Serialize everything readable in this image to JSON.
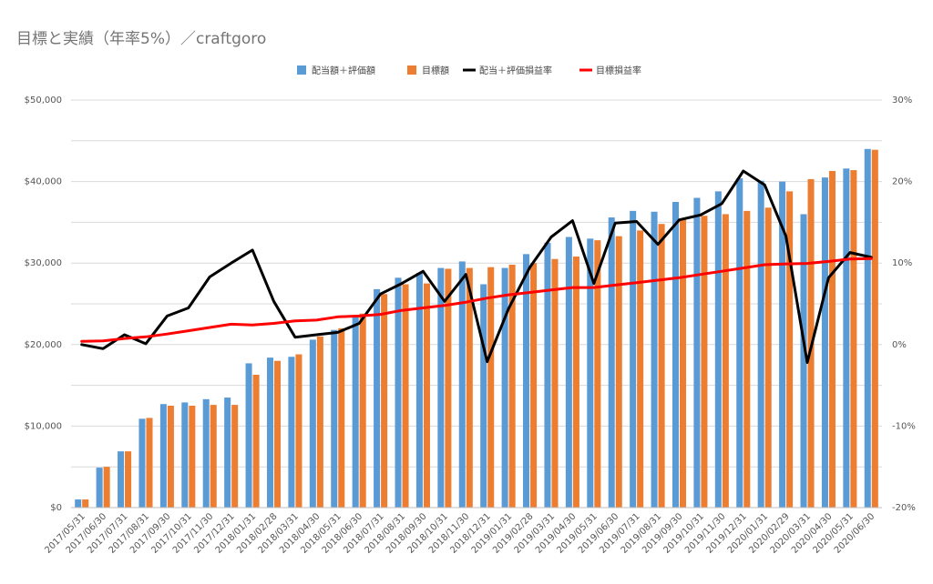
{
  "title": "目標と実績（年率5%）／craftgoro",
  "colors": {
    "actual_bar": "#5b9bd5",
    "target_bar": "#ed7d31",
    "actual_rate_line": "#000000",
    "target_rate_line": "#ff0000",
    "grid": "#d9d9d9",
    "axis": "#bfbfbf"
  },
  "chart_data": {
    "type": "bar",
    "title": "目標と実績（年率5%）／craftgoro",
    "categories": [
      "2017/05/31",
      "2017/06/30",
      "2017/07/31",
      "2017/08/31",
      "2017/09/30",
      "2017/10/31",
      "2017/11/30",
      "2017/12/31",
      "2018/01/31",
      "2018/02/28",
      "2018/03/31",
      "2018/04/30",
      "2018/05/31",
      "2018/06/30",
      "2018/07/31",
      "2018/08/31",
      "2018/09/30",
      "2018/10/31",
      "2018/11/30",
      "2018/12/31",
      "2019/01/31",
      "2019/02/28",
      "2019/03/31",
      "2019/04/30",
      "2019/05/31",
      "2019/06/30",
      "2019/07/31",
      "2019/08/31",
      "2019/09/30",
      "2019/10/31",
      "2019/11/30",
      "2019/12/31",
      "2020/01/31",
      "2020/02/29",
      "2020/03/31",
      "2020/04/30",
      "2020/05/31",
      "2020/06/30"
    ],
    "series": [
      {
        "name": "配当額＋評価額",
        "type": "bar",
        "axis": "left",
        "values": [
          1000,
          4900,
          6900,
          10900,
          12700,
          12900,
          13300,
          13500,
          17700,
          18400,
          18500,
          20600,
          21800,
          23500,
          26800,
          28200,
          28800,
          29400,
          30200,
          27400,
          29400,
          31100,
          32500,
          33200,
          33000,
          35600,
          36400,
          36300,
          37500,
          38000,
          38800,
          40400,
          40100,
          40000,
          36000,
          40500,
          41600,
          44000
        ]
      },
      {
        "name": "目標額",
        "type": "bar",
        "axis": "left",
        "values": [
          1000,
          5000,
          6900,
          11000,
          12500,
          12500,
          12600,
          12600,
          16300,
          18000,
          18800,
          21000,
          22000,
          23800,
          26200,
          27400,
          27500,
          29300,
          29400,
          29500,
          29800,
          30000,
          30500,
          30800,
          32800,
          33300,
          34000,
          34800,
          35400,
          35800,
          36000,
          36400,
          36800,
          38800,
          40300,
          41300,
          41400,
          43900
        ]
      },
      {
        "name": "配当＋評価損益率",
        "type": "line",
        "axis": "right",
        "values": [
          0.0,
          -0.5,
          1.2,
          0.1,
          3.5,
          4.5,
          8.3,
          10.0,
          11.6,
          5.3,
          0.9,
          1.2,
          1.5,
          2.6,
          6.2,
          7.5,
          9.0,
          5.3,
          8.6,
          -2.1,
          4.4,
          9.5,
          13.2,
          15.2,
          7.5,
          14.9,
          15.1,
          12.3,
          15.3,
          15.9,
          17.3,
          21.3,
          19.6,
          13.3,
          -2.2,
          8.2,
          11.3,
          10.7
        ]
      },
      {
        "name": "目標損益率",
        "type": "line",
        "axis": "right",
        "values": [
          0.4,
          0.45,
          0.75,
          0.95,
          1.3,
          1.7,
          2.1,
          2.5,
          2.4,
          2.6,
          2.9,
          3.0,
          3.4,
          3.5,
          3.7,
          4.2,
          4.5,
          4.8,
          5.2,
          5.7,
          6.1,
          6.4,
          6.7,
          7.0,
          7.0,
          7.3,
          7.6,
          7.9,
          8.2,
          8.6,
          9.0,
          9.4,
          9.8,
          9.9,
          9.95,
          10.2,
          10.5,
          10.55
        ]
      }
    ],
    "left_axis": {
      "ylim": [
        0,
        50000
      ],
      "ticks": [
        "$0",
        "$10,000",
        "$20,000",
        "$30,000",
        "$40,000",
        "$50,000"
      ]
    },
    "right_axis": {
      "ylim": [
        -20,
        30
      ],
      "ticks": [
        "-20%",
        "-10%",
        "0%",
        "10%",
        "20%",
        "30%"
      ]
    },
    "grid": true,
    "legend_position": "top-center"
  }
}
